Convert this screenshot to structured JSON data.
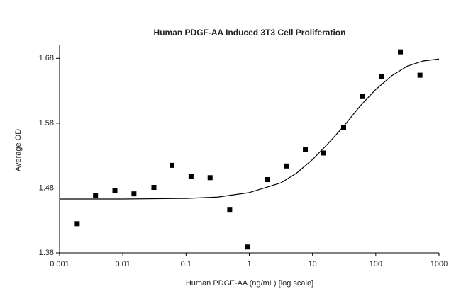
{
  "chart_data": {
    "type": "scatter",
    "title": "Human PDGF-AA Induced 3T3 Cell Proliferation",
    "x_label": "Human PDGF-AA (ng/mL) [log scale]",
    "y_label": "Average OD",
    "x_log": true,
    "xlim": [
      0.001,
      1000
    ],
    "xticks": [
      0.001,
      0.01,
      0.1,
      1,
      10,
      100,
      1000
    ],
    "ylim": [
      1.38,
      1.7
    ],
    "yticks": [
      1.38,
      1.48,
      1.58,
      1.68
    ],
    "series": [
      {
        "type": "scatter",
        "color": "#000000",
        "x": [
          0.0019,
          0.0037,
          0.0075,
          0.015,
          0.031,
          0.06,
          0.12,
          0.24,
          0.49,
          0.95,
          1.95,
          3.9,
          7.7,
          15,
          31,
          62,
          125,
          245,
          500
        ],
        "values": [
          1.425,
          1.468,
          1.476,
          1.471,
          1.481,
          1.515,
          1.498,
          1.496,
          1.447,
          1.389,
          1.493,
          1.514,
          1.54,
          1.534,
          1.573,
          1.621,
          1.652,
          1.69,
          1.654
        ]
      },
      {
        "type": "line",
        "color": "#000000",
        "x": [
          0.001,
          0.01,
          0.1,
          0.316,
          1,
          3.16,
          5.6,
          10,
          17.8,
          31.6,
          56,
          100,
          178,
          316,
          562,
          1000
        ],
        "values": [
          1.463,
          1.463,
          1.464,
          1.466,
          1.473,
          1.488,
          1.503,
          1.524,
          1.549,
          1.576,
          1.606,
          1.632,
          1.653,
          1.668,
          1.676,
          1.679
        ]
      }
    ]
  }
}
